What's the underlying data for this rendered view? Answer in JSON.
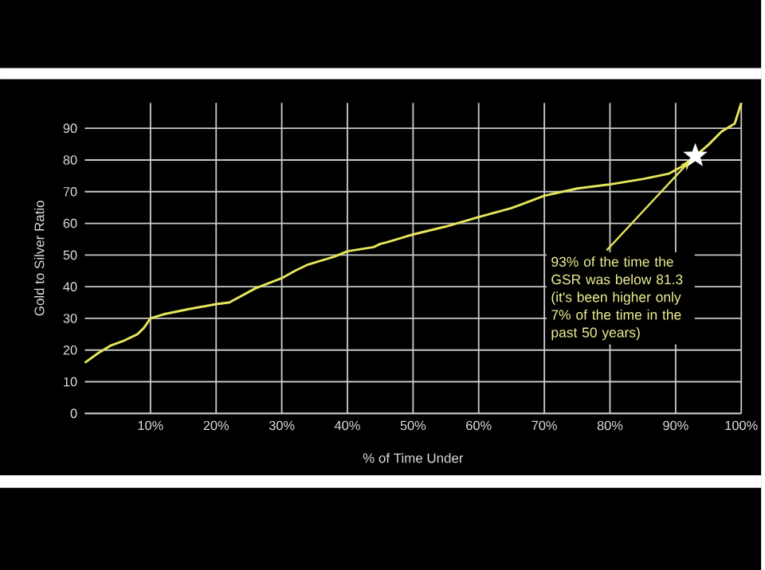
{
  "chart_data": {
    "type": "line",
    "xlabel": "% of Time Under",
    "ylabel": "Gold to Silver Ratio",
    "xlim": [
      0,
      100
    ],
    "ylim": [
      0,
      98
    ],
    "xticks": [
      {
        "value": 10,
        "label": "10%"
      },
      {
        "value": 20,
        "label": "20%"
      },
      {
        "value": 30,
        "label": "30%"
      },
      {
        "value": 40,
        "label": "40%"
      },
      {
        "value": 50,
        "label": "50%"
      },
      {
        "value": 60,
        "label": "60%"
      },
      {
        "value": 70,
        "label": "70%"
      },
      {
        "value": 80,
        "label": "80%"
      },
      {
        "value": 90,
        "label": "90%"
      },
      {
        "value": 100,
        "label": "100%"
      }
    ],
    "yticks": [
      0,
      10,
      20,
      30,
      40,
      50,
      60,
      70,
      80,
      90
    ],
    "grid": true,
    "series": [
      {
        "color": "#e6e65c",
        "x": [
          0,
          2,
          4,
          6,
          8,
          9,
          10,
          12,
          16,
          20,
          22,
          26,
          30,
          32,
          34,
          38,
          40,
          44,
          45,
          46,
          50,
          55,
          60,
          65,
          70,
          75,
          80,
          85,
          89,
          91,
          93,
          95,
          97,
          99,
          100
        ],
        "values": [
          16,
          19,
          21.5,
          23,
          25,
          27,
          30,
          31.3,
          33,
          34.5,
          35,
          39.5,
          42.7,
          45,
          47,
          49.5,
          51.2,
          52.5,
          53.5,
          54,
          56.5,
          59,
          62,
          64.8,
          68.7,
          71,
          72.3,
          74,
          75.7,
          78,
          81.3,
          84.8,
          89,
          91.5,
          98
        ]
      },
      {
        "type": "scatter",
        "marker": "star",
        "color": "#ffffff",
        "x": [
          93
        ],
        "values": [
          81.3
        ]
      }
    ],
    "annotations": [
      {
        "text": "93% of the time the GSR was below 81.3 (it's been higher only 7% of the time in the past 50 years)",
        "x": 93,
        "y": 81.3
      }
    ]
  }
}
